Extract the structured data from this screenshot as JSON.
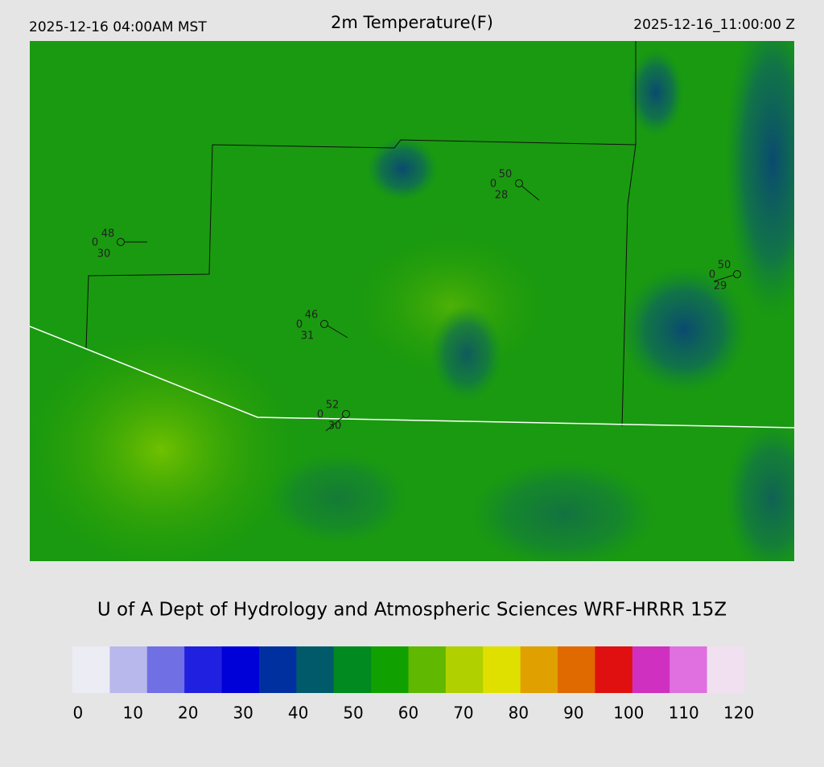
{
  "header": {
    "local_time": "2025-12-16 04:00AM MST",
    "title": "2m Temperature(F)",
    "utc_time": "2025-12-16_11:00:00 Z"
  },
  "stations": [
    {
      "temperature": 48,
      "left": 0,
      "dewpoint": 30
    },
    {
      "temperature": 50,
      "left": 0,
      "dewpoint": 28
    },
    {
      "temperature": 50,
      "left": 0,
      "dewpoint": 29
    },
    {
      "temperature": 46,
      "left": 0,
      "dewpoint": 31
    },
    {
      "temperature": 52,
      "left": 0,
      "dewpoint": 30
    }
  ],
  "credit": "U of A Dept of Hydrology and Atmospheric Sciences WRF-HRRR 15Z",
  "colorbar": {
    "lim": [
      -1,
      121
    ],
    "ticks": [
      0,
      10,
      20,
      30,
      40,
      50,
      60,
      70,
      80,
      90,
      100,
      110,
      120
    ],
    "colors": [
      "#ececf4",
      "#b8b8ec",
      "#7070e4",
      "#2020e0",
      "#0000d8",
      "#0030a0",
      "#005a6a",
      "#008a20",
      "#10a000",
      "#60b800",
      "#b0d000",
      "#e0e000",
      "#e0a000",
      "#e06a00",
      "#e01010",
      "#d030c0",
      "#e070e0",
      "#f0e0f0"
    ]
  }
}
